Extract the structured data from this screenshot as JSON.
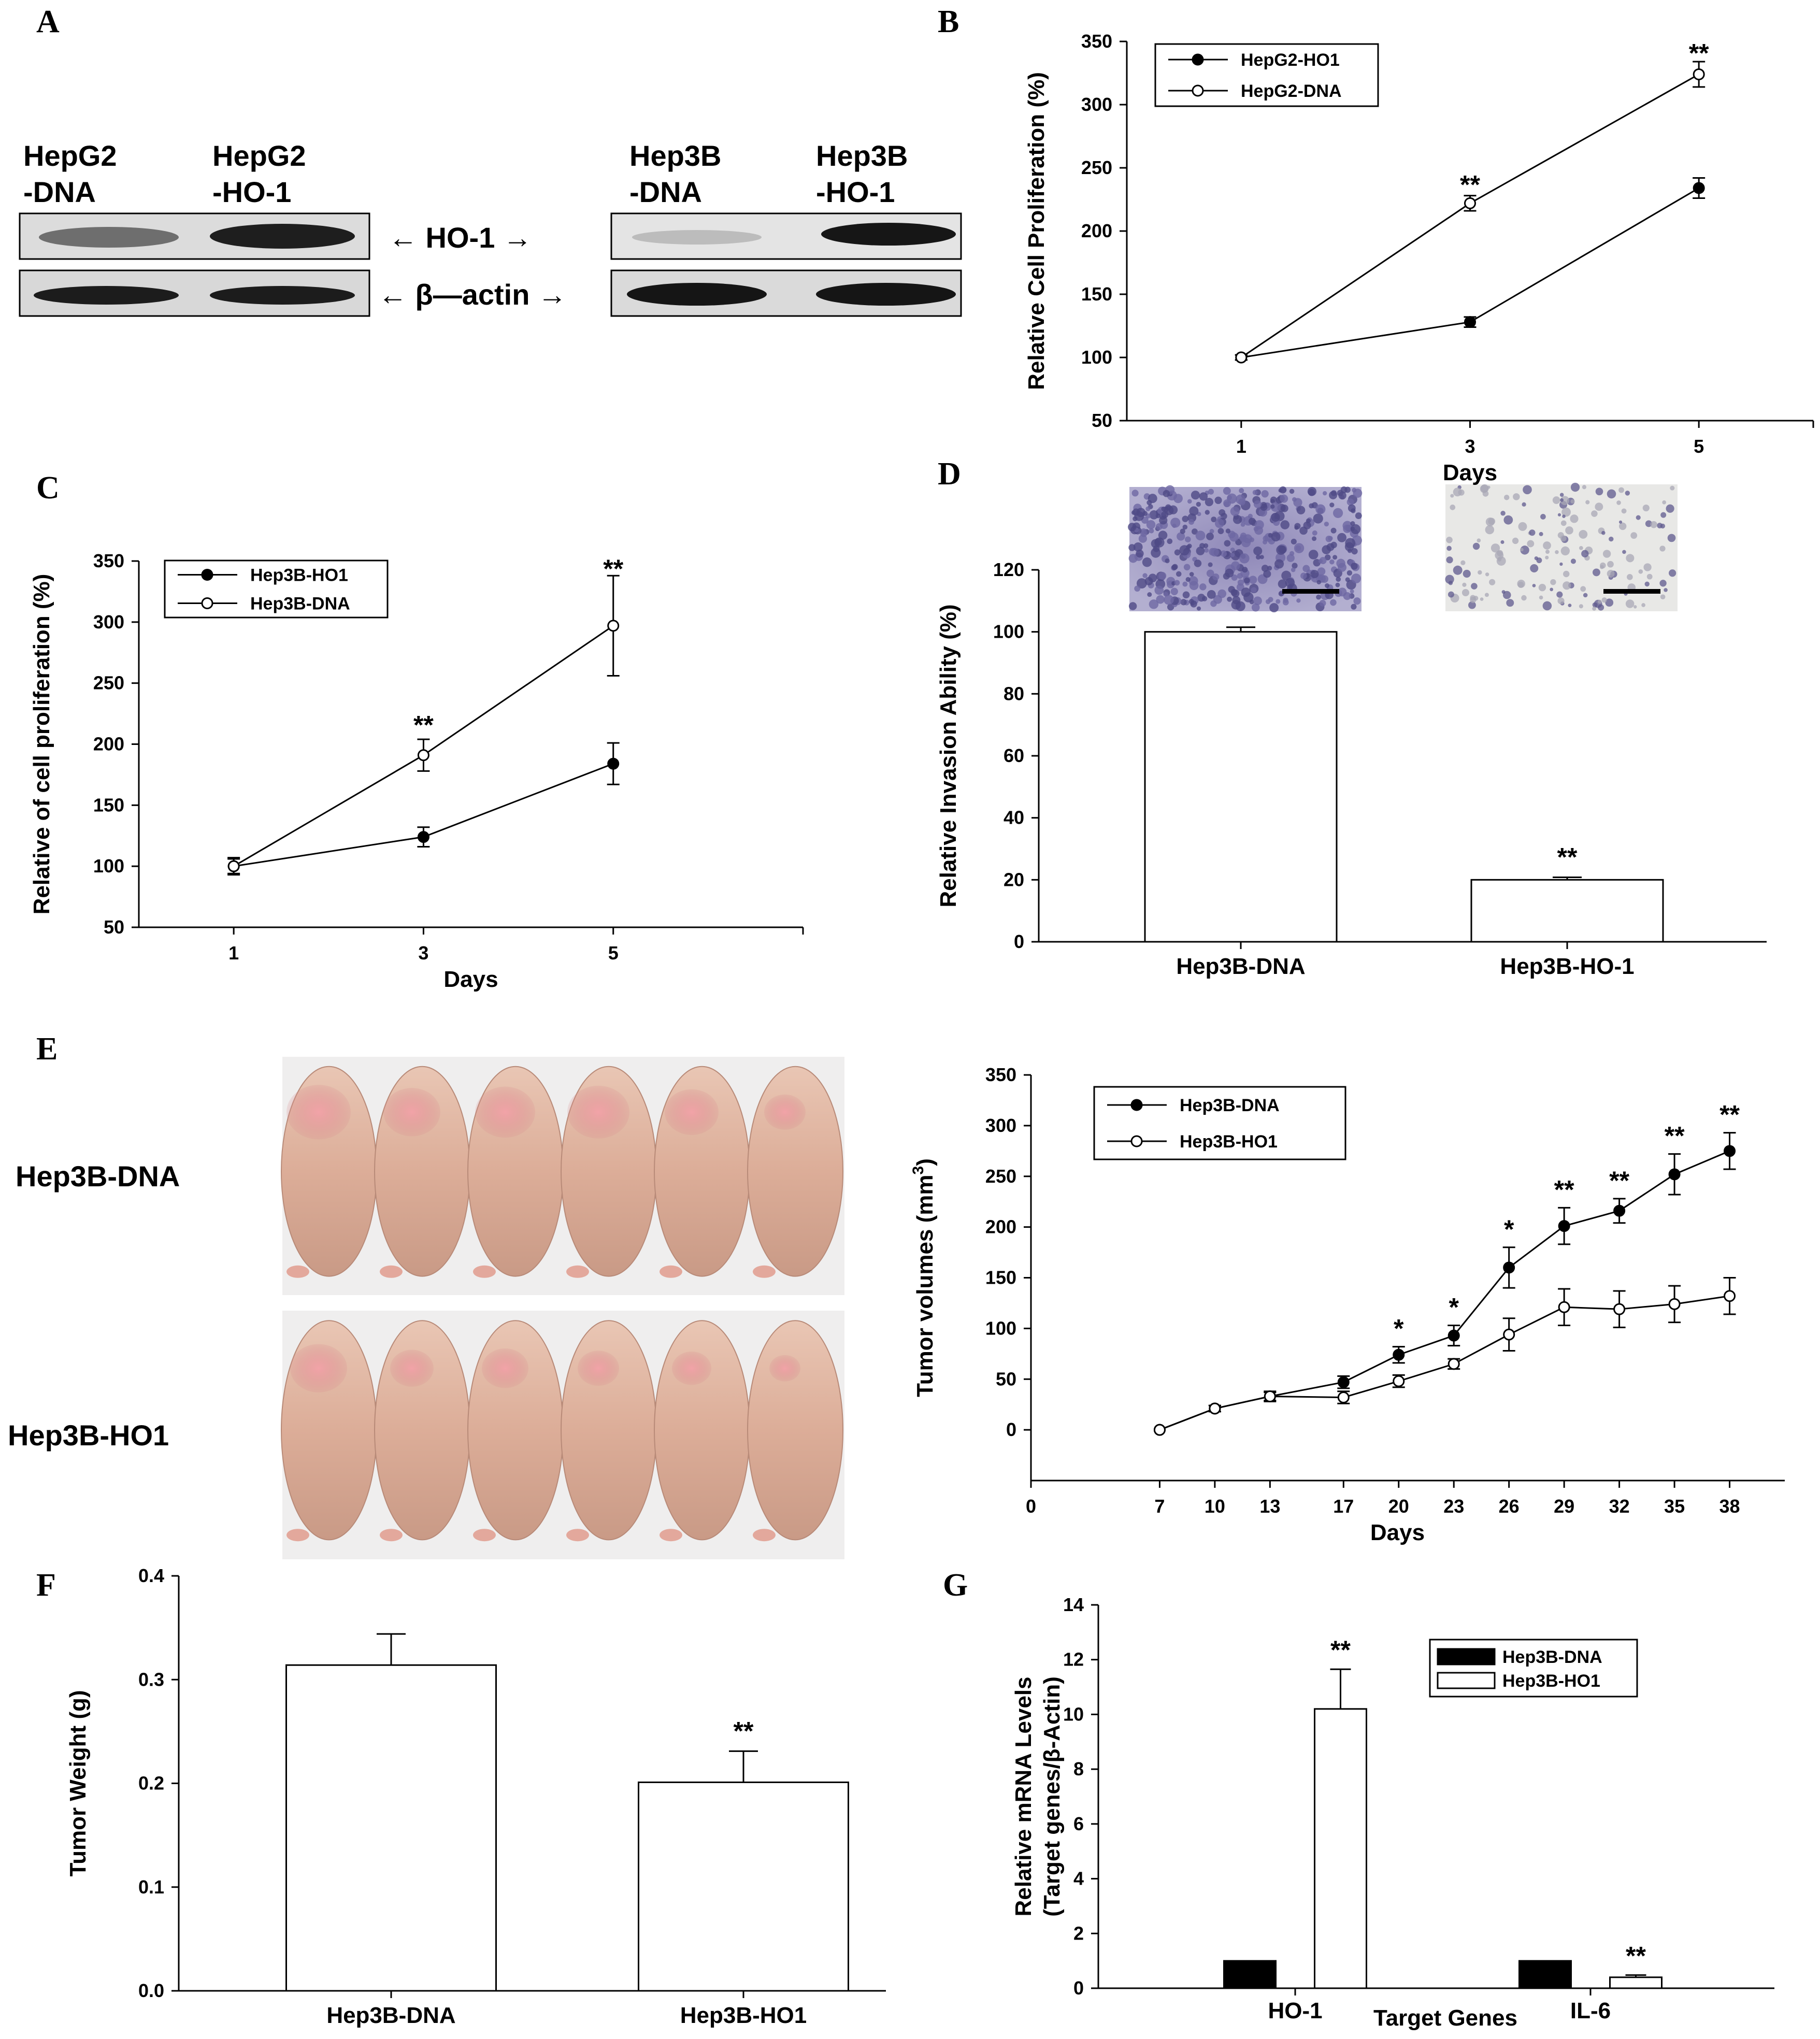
{
  "panel_letters": {
    "a": "A",
    "b": "B",
    "c": "C",
    "d": "D",
    "e": "E",
    "f": "F",
    "g": "G"
  },
  "western_blot": {
    "left": {
      "lane1_line1": "HepG2",
      "lane1_line2": "-DNA",
      "lane2_line1": "HepG2",
      "lane2_line2": "-HO-1"
    },
    "right": {
      "lane1_line1": "Hep3B",
      "lane1_line2": "-DNA",
      "lane2_line1": "Hep3B",
      "lane2_line2": "-HO-1"
    },
    "ho1_label": "← HO-1 →",
    "actin_label": "← β—actin →"
  },
  "mice_photo": {
    "row1_label": "Hep3B-DNA",
    "row2_label": "Hep3B-HO1"
  },
  "chart_data": [
    {
      "id": "B",
      "type": "line",
      "title": "",
      "xlabel": "Days",
      "ylabel": "Relative Cell Proliferation (%)",
      "x": [
        1,
        3,
        5
      ],
      "xlim": [
        0,
        6
      ],
      "ylim": [
        50,
        350
      ],
      "yticks": [
        50,
        100,
        150,
        200,
        250,
        300,
        350
      ],
      "series": [
        {
          "name": "HepG2-HO1",
          "marker": "filled",
          "values": [
            100,
            128,
            234
          ],
          "errors": [
            2,
            4,
            8
          ]
        },
        {
          "name": "HepG2-DNA",
          "marker": "open",
          "values": [
            100,
            222,
            324
          ],
          "errors": [
            2,
            6,
            10
          ]
        }
      ],
      "annotations": [
        {
          "x": 3,
          "y": 238,
          "text": "**"
        },
        {
          "x": 5,
          "y": 342,
          "text": "**"
        }
      ]
    },
    {
      "id": "C",
      "type": "line",
      "title": "",
      "xlabel": "Days",
      "ylabel": "Relative of cell proliferation (%)",
      "x": [
        1,
        3,
        5
      ],
      "xlim": [
        0,
        7
      ],
      "ylim": [
        50,
        350
      ],
      "yticks": [
        50,
        100,
        150,
        200,
        250,
        300,
        350
      ],
      "series": [
        {
          "name": "Hep3B-HO1",
          "marker": "filled",
          "values": [
            100,
            124,
            184
          ],
          "errors": [
            6,
            8,
            17
          ]
        },
        {
          "name": "Hep3B-DNA",
          "marker": "open",
          "values": [
            100,
            191,
            297
          ],
          "errors": [
            7,
            13,
            41
          ]
        }
      ],
      "annotations": [
        {
          "x": 3,
          "y": 217,
          "text": "**"
        },
        {
          "x": 5,
          "y": 345,
          "text": "**"
        }
      ]
    },
    {
      "id": "D",
      "type": "bar",
      "title": "",
      "xlabel": "",
      "ylabel": "Relative Invasion Ability (%)",
      "categories": [
        "Hep3B-DNA",
        "Hep3B-HO-1"
      ],
      "values": [
        100,
        20
      ],
      "errors": [
        1.5,
        0.8
      ],
      "ylim": [
        0,
        120
      ],
      "yticks": [
        0,
        20,
        40,
        60,
        80,
        100,
        120
      ],
      "annotations": [
        {
          "category": "Hep3B-HO-1",
          "text": "**"
        }
      ]
    },
    {
      "id": "E",
      "type": "line",
      "title": "",
      "xlabel": "Days",
      "ylabel": "Tumor volumes (mm",
      "ylabel_sup": "3",
      "ylabel_end": ")",
      "x": [
        7,
        10,
        13,
        17,
        20,
        23,
        26,
        29,
        32,
        35,
        38
      ],
      "xticks": [
        0,
        7,
        10,
        13,
        17,
        20,
        23,
        26,
        29,
        32,
        35,
        38
      ],
      "xlim": [
        0,
        41
      ],
      "ylim": [
        -50,
        350
      ],
      "yticks": [
        0,
        50,
        100,
        150,
        200,
        250,
        300,
        350
      ],
      "series": [
        {
          "name": "Hep3B-DNA",
          "marker": "filled",
          "values": [
            0,
            21,
            33,
            47,
            74,
            93,
            160,
            201,
            216,
            252,
            275
          ],
          "errors": [
            0,
            3,
            4,
            6,
            8,
            10,
            20,
            18,
            12,
            20,
            18
          ]
        },
        {
          "name": "Hep3B-HO1",
          "marker": "open",
          "values": [
            0,
            21,
            33,
            32,
            48,
            65,
            94,
            121,
            119,
            124,
            132
          ],
          "errors": [
            0,
            3,
            5,
            6,
            6,
            5,
            16,
            18,
            18,
            18,
            18
          ]
        }
      ],
      "annotations": [
        {
          "x": 20,
          "text": "*"
        },
        {
          "x": 23,
          "text": "*"
        },
        {
          "x": 26,
          "text": "*"
        },
        {
          "x": 29,
          "text": "**"
        },
        {
          "x": 32,
          "text": "**"
        },
        {
          "x": 35,
          "text": "**"
        },
        {
          "x": 38,
          "text": "**"
        }
      ]
    },
    {
      "id": "F",
      "type": "bar",
      "title": "",
      "xlabel": "",
      "ylabel": "Tumor Weight (g)",
      "categories": [
        "Hep3B-DNA",
        "Hep3B-HO1"
      ],
      "values": [
        0.314,
        0.201
      ],
      "errors": [
        0.03,
        0.03
      ],
      "ylim": [
        0,
        0.4
      ],
      "yticks": [
        "0.0",
        "0.1",
        "0.2",
        "0.3",
        "0.4"
      ],
      "annotations": [
        {
          "category": "Hep3B-HO1",
          "text": "**"
        }
      ]
    },
    {
      "id": "G",
      "type": "bar",
      "title": "",
      "xlabel": "Target Genes",
      "ylabel_line1": "Relative mRNA Levels",
      "ylabel_line2": "(Target genes/β-Actin)",
      "categories": [
        "HO-1",
        "IL-6"
      ],
      "series": [
        {
          "name": "Hep3B-DNA",
          "color": "#000000",
          "values": [
            1,
            1
          ],
          "errors": [
            0,
            0
          ]
        },
        {
          "name": "Hep3B-HO1",
          "color": "#ffffff",
          "values": [
            10.2,
            0.4
          ],
          "errors": [
            1.45,
            0.08
          ]
        }
      ],
      "ylim": [
        0,
        14
      ],
      "yticks": [
        0,
        2,
        4,
        6,
        8,
        10,
        12,
        14
      ],
      "annotations": [
        {
          "category": "HO-1",
          "text": "**"
        },
        {
          "category": "IL-6",
          "text": "**"
        }
      ]
    }
  ]
}
